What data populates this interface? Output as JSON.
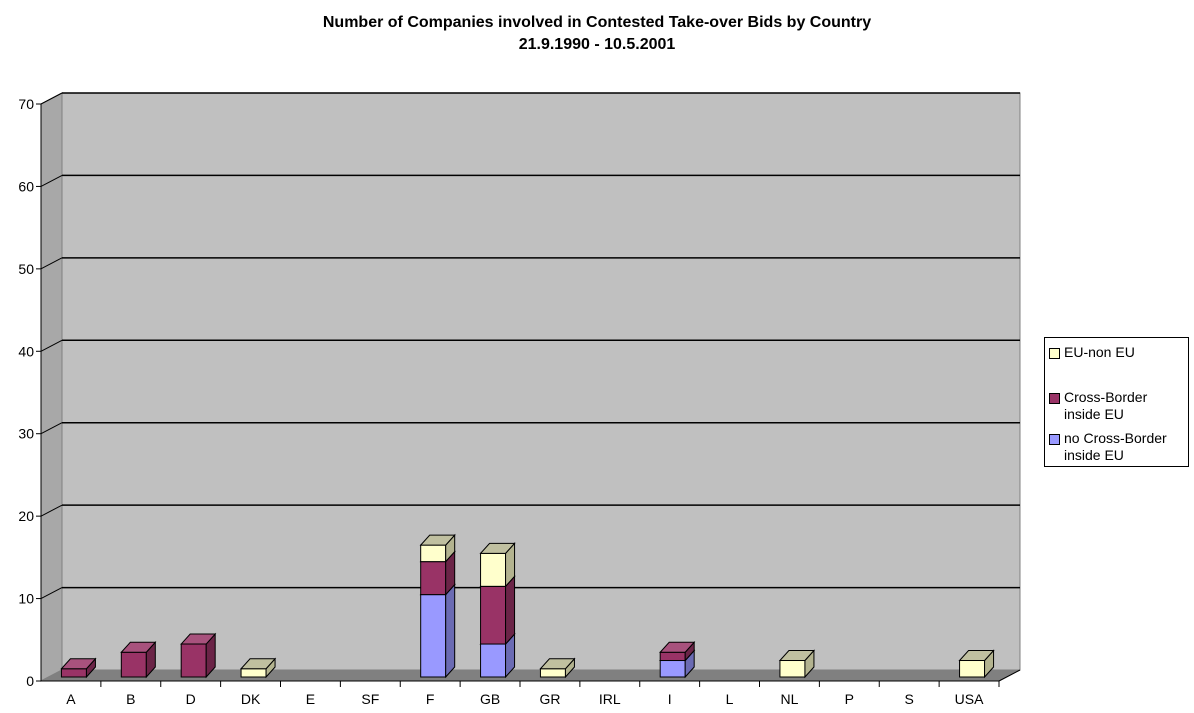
{
  "chart_data": {
    "type": "bar",
    "stacked": true,
    "title": "Number of Companies involved in Contested Take-over Bids by Country",
    "subtitle": "21.9.1990 - 10.5.2001",
    "categories": [
      "A",
      "B",
      "D",
      "DK",
      "E",
      "SF",
      "F",
      "GB",
      "GR",
      "IRL",
      "I",
      "L",
      "NL",
      "P",
      "S",
      "USA"
    ],
    "y_ticks": [
      "0",
      "10",
      "20",
      "30",
      "40",
      "50",
      "60",
      "70"
    ],
    "ylim": [
      0,
      70
    ],
    "grid": true,
    "legend_position": "right",
    "series": [
      {
        "name": "no Cross-Border inside EU",
        "color": "#9999ff",
        "values": [
          0,
          0,
          0,
          0,
          0,
          0,
          10,
          4,
          0,
          0,
          2,
          0,
          0,
          0,
          0,
          0
        ]
      },
      {
        "name": "Cross-Border inside EU",
        "color": "#993366",
        "values": [
          1,
          3,
          4,
          0,
          0,
          0,
          4,
          7,
          0,
          0,
          1,
          0,
          0,
          0,
          0,
          0
        ]
      },
      {
        "name": "EU-non EU",
        "color": "#ffffcc",
        "values": [
          0,
          0,
          0,
          1,
          0,
          0,
          2,
          4,
          1,
          0,
          0,
          0,
          2,
          0,
          0,
          2
        ]
      }
    ]
  },
  "legend": {
    "items": [
      {
        "line1": "EU-non EU",
        "line2": "",
        "color": "#ffffcc"
      },
      {
        "line1": "Cross-Border",
        "line2": "inside EU",
        "color": "#993366"
      },
      {
        "line1": "no Cross-Border",
        "line2": "inside EU",
        "color": "#9999ff"
      }
    ]
  }
}
